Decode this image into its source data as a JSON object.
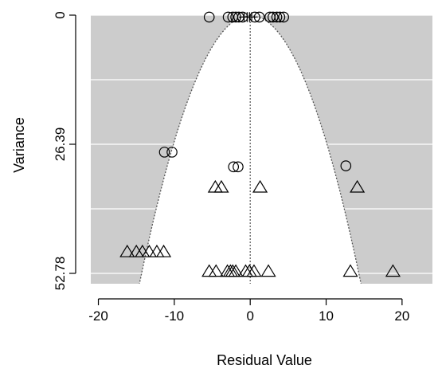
{
  "chart_data": {
    "type": "scatter",
    "title": "",
    "xlabel": "Residual Value",
    "ylabel": "Variance",
    "xlim": [
      -21,
      24
    ],
    "ylim": [
      52.78,
      0
    ],
    "x_ticks": [
      -20,
      -10,
      0,
      10,
      20
    ],
    "x_tick_labels": [
      "-20",
      "-10",
      "0",
      "10",
      "20"
    ],
    "y_ticks": [
      0,
      26.39,
      52.78
    ],
    "y_tick_labels": [
      "0",
      "26.39",
      "52.78"
    ],
    "y_grid": [
      0,
      13.195,
      26.39,
      39.585,
      52.78
    ],
    "background_color": "#cccccc",
    "funnel_fill_color": "#ffffff",
    "funnel_boundary": "dotted",
    "funnel_parabola_coef": 0.2579,
    "reference_line_x": 0,
    "series": [
      {
        "marker": "circle",
        "points": [
          {
            "x": -5.4,
            "y": 0.4
          },
          {
            "x": -2.9,
            "y": 0.4
          },
          {
            "x": -2.3,
            "y": 0.4
          },
          {
            "x": -1.9,
            "y": 0.4
          },
          {
            "x": -1.5,
            "y": 0.4
          },
          {
            "x": -1.0,
            "y": 0.4
          },
          {
            "x": 0.6,
            "y": 0.4
          },
          {
            "x": 1.2,
            "y": 0.4
          },
          {
            "x": 2.6,
            "y": 0.4
          },
          {
            "x": 3.0,
            "y": 0.4
          },
          {
            "x": 3.5,
            "y": 0.4
          },
          {
            "x": 3.9,
            "y": 0.4
          },
          {
            "x": 4.4,
            "y": 0.4
          },
          {
            "x": -11.3,
            "y": 28.0
          },
          {
            "x": -10.3,
            "y": 28.0
          },
          {
            "x": -2.2,
            "y": 31.0
          },
          {
            "x": -1.6,
            "y": 31.0
          },
          {
            "x": 12.6,
            "y": 30.8
          }
        ]
      },
      {
        "marker": "cross",
        "points": [
          {
            "x": -0.8,
            "y": 0.4
          },
          {
            "x": -0.4,
            "y": 0.4
          },
          {
            "x": -0.1,
            "y": 0.4
          },
          {
            "x": 0.2,
            "y": 0.4
          }
        ]
      },
      {
        "marker": "triangle",
        "points": [
          {
            "x": -4.6,
            "y": 35.3
          },
          {
            "x": -3.8,
            "y": 35.3
          },
          {
            "x": 1.3,
            "y": 35.3
          },
          {
            "x": 14.1,
            "y": 35.3
          },
          {
            "x": -16.2,
            "y": 48.5
          },
          {
            "x": -15.0,
            "y": 48.5
          },
          {
            "x": -14.2,
            "y": 48.5
          },
          {
            "x": -13.3,
            "y": 48.5
          },
          {
            "x": -12.3,
            "y": 48.5
          },
          {
            "x": -11.4,
            "y": 48.5
          },
          {
            "x": -5.4,
            "y": 52.5
          },
          {
            "x": -4.5,
            "y": 52.5
          },
          {
            "x": -3.0,
            "y": 52.5
          },
          {
            "x": -2.6,
            "y": 52.5
          },
          {
            "x": -2.3,
            "y": 52.5
          },
          {
            "x": -1.9,
            "y": 52.5
          },
          {
            "x": -0.6,
            "y": 52.5
          },
          {
            "x": -0.1,
            "y": 52.5
          },
          {
            "x": 0.5,
            "y": 52.5
          },
          {
            "x": 2.4,
            "y": 52.5
          },
          {
            "x": 13.2,
            "y": 52.5
          },
          {
            "x": 18.8,
            "y": 52.5
          }
        ]
      }
    ]
  }
}
